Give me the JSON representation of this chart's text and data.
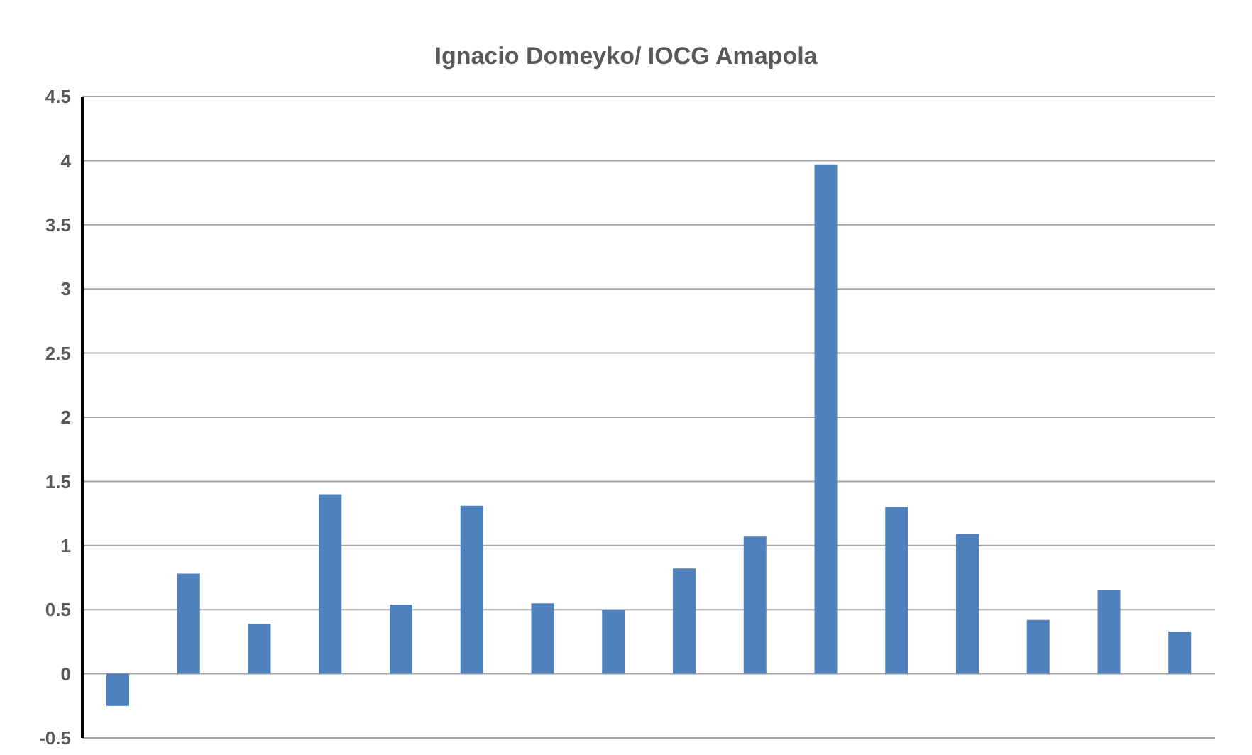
{
  "chart_data": {
    "type": "bar",
    "title": "Ignacio Domeyko/ IOCG Amapola",
    "categories": [
      null,
      null,
      null,
      null,
      null,
      null,
      null,
      null,
      null,
      null,
      null,
      null,
      null,
      null,
      null,
      null
    ],
    "values": [
      -0.25,
      0.78,
      0.39,
      1.4,
      0.54,
      1.31,
      0.55,
      0.5,
      0.82,
      1.07,
      3.97,
      1.3,
      1.09,
      0.42,
      0.65,
      0.33
    ],
    "color": "#4f81bd",
    "ylim": [
      -0.5,
      4.5
    ],
    "yticks": [
      -0.5,
      0,
      0.5,
      1,
      1.5,
      2,
      2.5,
      3,
      3.5,
      4,
      4.5
    ],
    "grid": "y",
    "tick_labels": "y"
  }
}
